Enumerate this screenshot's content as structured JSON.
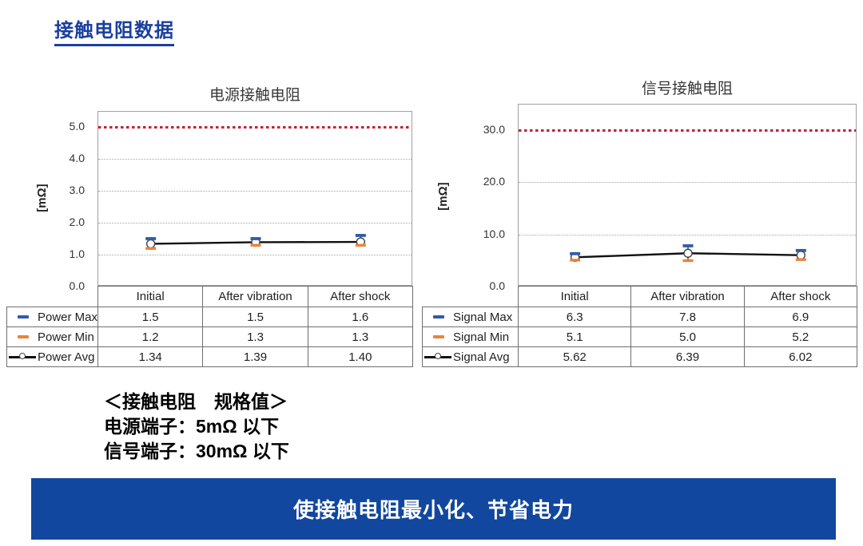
{
  "page": {
    "title": "接触电阻数据",
    "spec": {
      "heading": "＜接触电阻　规格值＞",
      "lines": [
        "电源端子：5mΩ 以下",
        "信号端子：30mΩ 以下"
      ]
    },
    "banner": "使接触电阻最小化、节省电力"
  },
  "colors": {
    "title_blue": "#1b3f9d",
    "banner_blue": "#11479e",
    "limit_red": "#c0213a",
    "series_max_blue": "#2e5ca8",
    "series_min_orange": "#e8843c",
    "series_avg_black": "#111111"
  },
  "chart_data": [
    {
      "type": "line",
      "title": "电源接触电阻",
      "ylabel": "[mΩ]",
      "categories": [
        "Initial",
        "After vibration",
        "After shock"
      ],
      "yticks": [
        0,
        1,
        2,
        3,
        4,
        5
      ],
      "ytick_labels": [
        "0.0",
        "1.0",
        "2.0",
        "3.0",
        "4.0",
        "5.0"
      ],
      "ylim": [
        0,
        5.48
      ],
      "grid": true,
      "limit_line": 5.0,
      "legend_position": "table-left",
      "series": [
        {
          "name": "Power Max",
          "role": "max",
          "values": [
            1.5,
            1.5,
            1.6
          ],
          "display": [
            "1.5",
            "1.5",
            "1.6"
          ]
        },
        {
          "name": "Power Min",
          "role": "min",
          "values": [
            1.2,
            1.3,
            1.3
          ],
          "display": [
            "1.2",
            "1.3",
            "1.3"
          ]
        },
        {
          "name": "Power Avg",
          "role": "avg",
          "values": [
            1.34,
            1.39,
            1.4
          ],
          "display": [
            "1.34",
            "1.39",
            "1.40"
          ]
        }
      ]
    },
    {
      "type": "line",
      "title": "信号接触电阻",
      "ylabel": "[mΩ]",
      "categories": [
        "Initial",
        "After vibration",
        "After shock"
      ],
      "yticks": [
        0,
        10,
        20,
        30
      ],
      "ytick_labels": [
        "0.0",
        "10.0",
        "20.0",
        "30.0"
      ],
      "ylim": [
        0,
        34.9
      ],
      "grid": true,
      "limit_line": 30.0,
      "legend_position": "table-left",
      "series": [
        {
          "name": "Signal Max",
          "role": "max",
          "values": [
            6.3,
            7.8,
            6.9
          ],
          "display": [
            "6.3",
            "7.8",
            "6.9"
          ]
        },
        {
          "name": "Signal Min",
          "role": "min",
          "values": [
            5.1,
            5.0,
            5.2
          ],
          "display": [
            "5.1",
            "5.0",
            "5.2"
          ]
        },
        {
          "name": "Signal Avg",
          "role": "avg",
          "values": [
            5.62,
            6.39,
            6.02
          ],
          "display": [
            "5.62",
            "6.39",
            "6.02"
          ]
        }
      ]
    }
  ]
}
